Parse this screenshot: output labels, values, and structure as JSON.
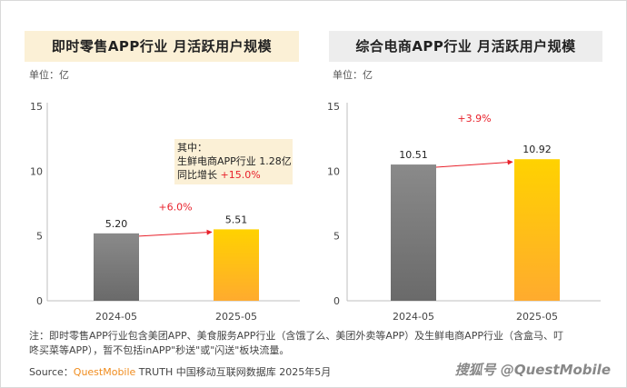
{
  "charts": [
    {
      "title": "即时零售APP行业 月活跃用户规模",
      "unit": "单位：亿",
      "chart_data": {
        "type": "bar",
        "categories": [
          "2024-05",
          "2025-05"
        ],
        "values": [
          5.2,
          5.51
        ],
        "value_labels": [
          "5.20",
          "5.51"
        ],
        "ylim": [
          0,
          15
        ],
        "yticks": [
          "0",
          "5",
          "10",
          "15"
        ],
        "growth_label": "+6.0%",
        "colors": [
          "#8c8c8c",
          "#ffc000"
        ]
      },
      "callout": {
        "line1": "其中：",
        "line2": "生鲜电商APP行业 1.28亿",
        "line3_prefix": "同比增长 ",
        "line3_value": "+15.0%"
      }
    },
    {
      "title": "综合电商APP行业 月活跃用户规模",
      "unit": "单位：亿",
      "chart_data": {
        "type": "bar",
        "categories": [
          "2024-05",
          "2025-05"
        ],
        "values": [
          10.51,
          10.92
        ],
        "value_labels": [
          "10.51",
          "10.92"
        ],
        "ylim": [
          0,
          15
        ],
        "yticks": [
          "0",
          "5",
          "10",
          "15"
        ],
        "growth_label": "+3.9%",
        "colors": [
          "#8c8c8c",
          "#ffc000"
        ]
      }
    }
  ],
  "note": {
    "line1": "注：即时零售APP行业包含美团APP、美食服务APP行业（含饿了么、美团外卖等APP）及生鲜电商APP行业（含盒马、叮",
    "line2": "咚买菜等APP），暂不包括inAPP\"秒送\"或\"闪送\"板块流量。"
  },
  "source": {
    "label": "Source：",
    "brand": "QuestMobile",
    "rest": " TRUTH 中国移动互联网数据库 2025年5月"
  },
  "watermark": "搜狐号 @QuestMobile",
  "colors": {
    "growth_red": "#e8212b",
    "accent_orange": "#f08c1e"
  }
}
